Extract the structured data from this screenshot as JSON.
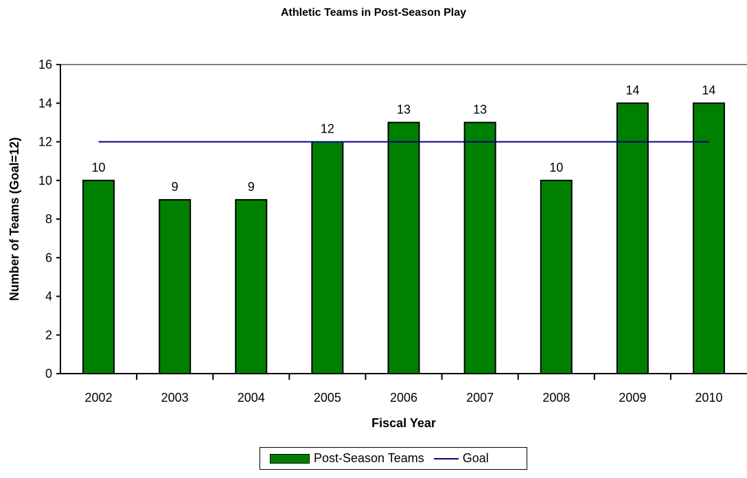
{
  "chart_data": {
    "type": "bar",
    "title": "Athletic Teams in Post-Season Play",
    "xlabel": "Fiscal Year",
    "ylabel": "Number of Teams (Goal=12)",
    "categories": [
      "2002",
      "2003",
      "2004",
      "2005",
      "2006",
      "2007",
      "2008",
      "2009",
      "2010"
    ],
    "series": [
      {
        "name": "Post-Season Teams",
        "type": "bar",
        "color": "#008000",
        "values": [
          10,
          9,
          9,
          12,
          13,
          13,
          10,
          14,
          14
        ]
      },
      {
        "name": "Goal",
        "type": "line",
        "color": "#000080",
        "values": [
          12,
          12,
          12,
          12,
          12,
          12,
          12,
          12,
          12
        ]
      }
    ],
    "ylim": [
      0,
      16
    ],
    "yticks": [
      0,
      2,
      4,
      6,
      8,
      10,
      12,
      14,
      16
    ],
    "grid": false,
    "legend_position": "bottom"
  }
}
